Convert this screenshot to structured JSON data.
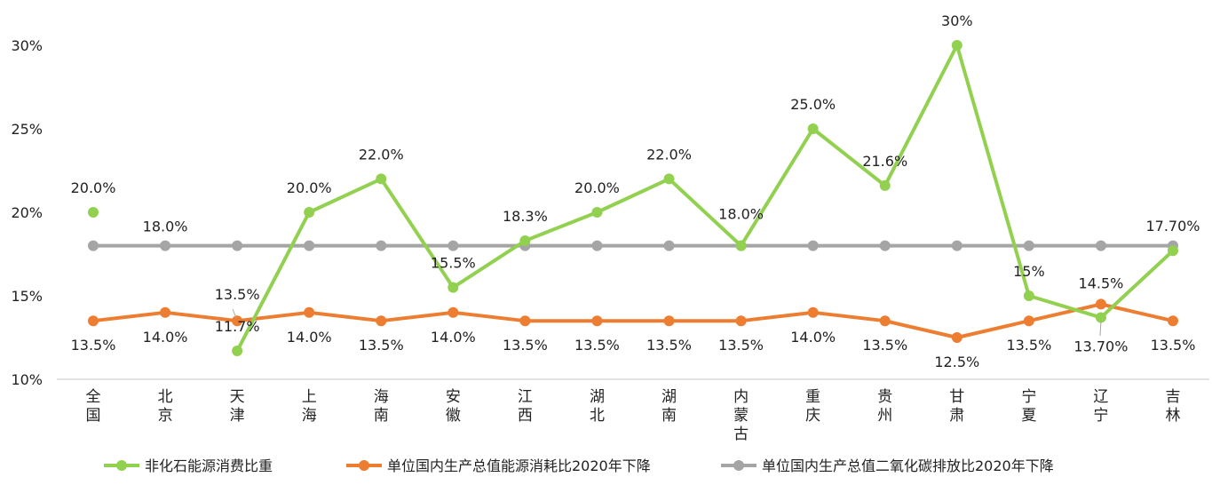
{
  "chart_data": {
    "type": "line",
    "categories": [
      "全国",
      "北京",
      "天津",
      "上海",
      "海南",
      "安徽",
      "江西",
      "湖北",
      "湖南",
      "内蒙古",
      "重庆",
      "贵州",
      "甘肃",
      "宁夏",
      "辽宁",
      "吉林"
    ],
    "ylim": [
      10,
      30
    ],
    "yticks": [
      "10%",
      "15%",
      "20%",
      "25%",
      "30%"
    ],
    "ytick_values": [
      10,
      15,
      20,
      25,
      30
    ],
    "grid": false,
    "legend_position": "bottom",
    "series": [
      {
        "name": "非化石能源消费比重",
        "color": "#92d050",
        "values": [
          20.0,
          null,
          11.7,
          20.0,
          22.0,
          15.5,
          18.3,
          20.0,
          22.0,
          18.0,
          25.0,
          21.6,
          30,
          15,
          13.7,
          17.7
        ],
        "labels": [
          "20.0%",
          null,
          "11.7%",
          "20.0%",
          "22.0%",
          "15.5%",
          "18.3%",
          "20.0%",
          "22.0%",
          "18.0%",
          "25.0%",
          "21.6%",
          "30%",
          "15%",
          "13.70%",
          "17.70%"
        ]
      },
      {
        "name": "单位国内生产总值能源消耗比2020年下降",
        "color": "#ed7d31",
        "values": [
          13.5,
          14.0,
          13.5,
          14.0,
          13.5,
          14.0,
          13.5,
          13.5,
          13.5,
          13.5,
          14.0,
          13.5,
          12.5,
          13.5,
          14.5,
          13.5
        ],
        "labels": [
          "13.5%",
          "14.0%",
          "13.5%",
          "14.0%",
          "13.5%",
          "14.0%",
          "13.5%",
          "13.5%",
          "13.5%",
          "13.5%",
          "14.0%",
          "13.5%",
          "12.5%",
          "13.5%",
          "14.5%",
          "13.5%"
        ]
      },
      {
        "name": "单位国内生产总值二氧化碳排放比2020年下降",
        "color": "#a5a5a5",
        "values": [
          18,
          18,
          18,
          18,
          18,
          18,
          18,
          18,
          18,
          18,
          18,
          18,
          18,
          18,
          18,
          18
        ],
        "labels": [
          null,
          "18.0%",
          null,
          null,
          null,
          null,
          null,
          null,
          null,
          null,
          null,
          null,
          null,
          null,
          null,
          null
        ]
      }
    ]
  }
}
